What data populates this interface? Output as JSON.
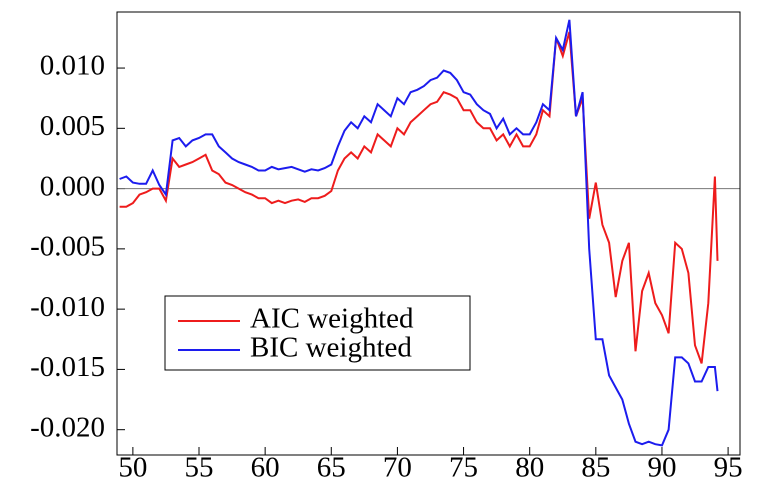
{
  "chart_data": {
    "type": "line",
    "x": [
      49,
      49.5,
      50,
      50.5,
      51,
      51.5,
      52,
      52.5,
      53,
      53.5,
      54,
      54.5,
      55,
      55.5,
      56,
      56.5,
      57,
      57.5,
      58,
      58.5,
      59,
      59.5,
      60,
      60.5,
      61,
      61.5,
      62,
      62.5,
      63,
      63.5,
      64,
      64.5,
      65,
      65.5,
      66,
      66.5,
      67,
      67.5,
      68,
      68.5,
      69,
      69.5,
      70,
      70.5,
      71,
      71.5,
      72,
      72.5,
      73,
      73.5,
      74,
      74.5,
      75,
      75.5,
      76,
      76.5,
      77,
      77.5,
      78,
      78.5,
      79,
      79.5,
      80,
      80.5,
      81,
      81.5,
      82,
      82.5,
      83,
      83.5,
      84,
      84.5,
      85,
      85.5,
      86,
      86.5,
      87,
      87.5,
      88,
      88.5,
      89,
      89.5,
      90,
      90.5,
      91,
      91.5,
      92,
      92.5,
      93,
      93.5,
      94,
      94.2
    ],
    "series": [
      {
        "name": "AIC weighted",
        "color": "#ee1c1c",
        "values": [
          -0.0015,
          -0.0015,
          -0.0012,
          -0.0005,
          -0.0003,
          0.0,
          0.0,
          -0.001,
          0.0025,
          0.0018,
          0.002,
          0.0022,
          0.0025,
          0.0028,
          0.0015,
          0.0012,
          0.0005,
          0.0003,
          0.0,
          -0.0003,
          -0.0005,
          -0.0008,
          -0.0008,
          -0.0012,
          -0.001,
          -0.0012,
          -0.001,
          -0.0009,
          -0.0011,
          -0.0008,
          -0.0008,
          -0.0006,
          -0.0002,
          0.0015,
          0.0025,
          0.003,
          0.0025,
          0.0035,
          0.003,
          0.0045,
          0.004,
          0.0035,
          0.005,
          0.0045,
          0.0055,
          0.006,
          0.0065,
          0.007,
          0.0072,
          0.008,
          0.0078,
          0.0075,
          0.0065,
          0.0065,
          0.0055,
          0.005,
          0.005,
          0.004,
          0.0045,
          0.0035,
          0.0045,
          0.0035,
          0.0035,
          0.0045,
          0.0065,
          0.006,
          0.0125,
          0.011,
          0.013,
          0.006,
          0.0075,
          -0.0025,
          0.0005,
          -0.003,
          -0.0045,
          -0.009,
          -0.006,
          -0.0045,
          -0.0135,
          -0.0085,
          -0.007,
          -0.0095,
          -0.0105,
          -0.012,
          -0.0045,
          -0.005,
          -0.007,
          -0.013,
          -0.0145,
          -0.0095,
          0.001,
          -0.006
        ]
      },
      {
        "name": "BIC weighted",
        "color": "#1c1cee",
        "values": [
          0.0008,
          0.001,
          0.0005,
          0.0004,
          0.0004,
          0.0015,
          0.0003,
          -0.0005,
          0.004,
          0.0042,
          0.0035,
          0.004,
          0.0042,
          0.0045,
          0.0045,
          0.0035,
          0.003,
          0.0025,
          0.0022,
          0.002,
          0.0018,
          0.0015,
          0.0015,
          0.0018,
          0.0016,
          0.0017,
          0.0018,
          0.0016,
          0.0014,
          0.0016,
          0.0015,
          0.0017,
          0.002,
          0.0035,
          0.0048,
          0.0055,
          0.005,
          0.006,
          0.0055,
          0.007,
          0.0065,
          0.006,
          0.0075,
          0.007,
          0.008,
          0.0082,
          0.0085,
          0.009,
          0.0092,
          0.0098,
          0.0096,
          0.009,
          0.008,
          0.0078,
          0.007,
          0.0065,
          0.0062,
          0.005,
          0.0058,
          0.0045,
          0.005,
          0.0045,
          0.0045,
          0.0055,
          0.007,
          0.0065,
          0.0125,
          0.0115,
          0.014,
          0.006,
          0.008,
          -0.005,
          -0.0125,
          -0.0125,
          -0.0155,
          -0.0165,
          -0.0175,
          -0.0195,
          -0.021,
          -0.0212,
          -0.021,
          -0.0212,
          -0.0213,
          -0.02,
          -0.014,
          -0.014,
          -0.0145,
          -0.016,
          -0.016,
          -0.0148,
          -0.0148,
          -0.0168
        ]
      }
    ],
    "xlim": [
      48.8,
      95.9
    ],
    "xticks": [
      50,
      55,
      60,
      65,
      70,
      75,
      80,
      85,
      90,
      95
    ],
    "ylim": [
      -0.0221,
      0.01465
    ],
    "yticks": [
      {
        "value": 0.01,
        "label": "0.010"
      },
      0.005,
      {
        "value": 0,
        "label": "0.000"
      },
      -0.005,
      {
        "value": -0.01,
        "label": "-0.010"
      },
      -0.015,
      {
        "value": -0.02,
        "label": "-0.020"
      }
    ],
    "zero_line": true,
    "grid": false,
    "legend": "center left"
  }
}
